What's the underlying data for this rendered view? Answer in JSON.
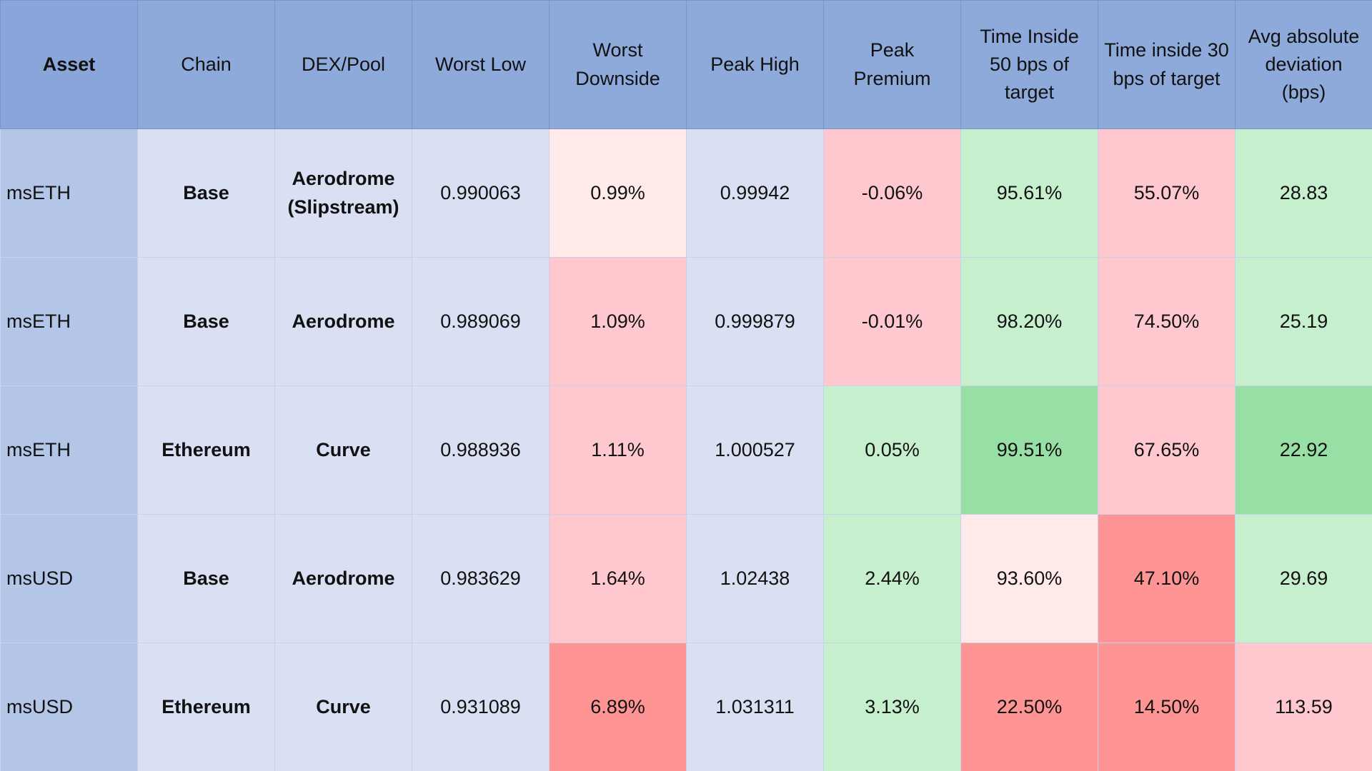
{
  "table": {
    "header": [
      "Asset",
      "Chain",
      "DEX/Pool",
      "Worst Low",
      "Worst Downside",
      "Peak High",
      "Peak Premium",
      "Time Inside 50 bps of target",
      "Time inside 30 bps of target",
      "Avg absolute deviation (bps)"
    ],
    "rows": [
      [
        "msETH",
        "Base",
        "Aerodrome (Slipstream)",
        "0.990063",
        "0.99%",
        "0.99942",
        "-0.06%",
        "95.61%",
        "55.07%",
        "28.83"
      ],
      [
        "msETH",
        "Base",
        "Aerodrome",
        "0.989069",
        "1.09%",
        "0.999879",
        "-0.01%",
        "98.20%",
        "74.50%",
        "25.19"
      ],
      [
        "msETH",
        "Ethereum",
        "Curve",
        "0.988936",
        "1.11%",
        "1.000527",
        "0.05%",
        "99.51%",
        "67.65%",
        "22.92"
      ],
      [
        "msUSD",
        "Base",
        "Aerodrome",
        "0.983629",
        "1.64%",
        "1.02438",
        "2.44%",
        "93.60%",
        "47.10%",
        "29.69"
      ],
      [
        "msUSD",
        "Ethereum",
        "Curve",
        "0.931089",
        "6.89%",
        "1.031311",
        "3.13%",
        "22.50%",
        "14.50%",
        "113.59"
      ]
    ]
  }
}
